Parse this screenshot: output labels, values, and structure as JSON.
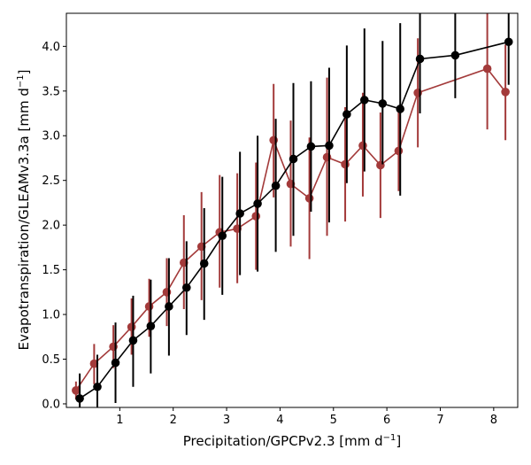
{
  "chart_data": {
    "type": "line",
    "title": "",
    "xlabel": "Precipitation/GPCPv2.3 [mm d",
    "xlabel_sup": "−1",
    "xlabel_end": "]",
    "ylabel": "Evapotranspiration/GLEAMv3.3a [mm d",
    "ylabel_sup": "−1",
    "ylabel_end": "]",
    "xlim": [
      0.0,
      8.45
    ],
    "ylim": [
      -0.04,
      4.37
    ],
    "xticks": [
      1,
      2,
      3,
      4,
      5,
      6,
      7,
      8
    ],
    "xtick_labels": [
      "1",
      "2",
      "3",
      "4",
      "5",
      "6",
      "7",
      "8"
    ],
    "yticks": [
      0.0,
      0.5,
      1.0,
      1.5,
      2.0,
      2.5,
      3.0,
      3.5,
      4.0
    ],
    "ytick_labels": [
      "0.0",
      "0.5",
      "1.0",
      "1.5",
      "2.0",
      "2.5",
      "3.0",
      "3.5",
      "4.0"
    ],
    "grid": false,
    "series": [
      {
        "color": "#a33a3a",
        "points": [
          {
            "x": 0.18,
            "y": 0.15,
            "err_low": 0.05,
            "err_high": 0.25
          },
          {
            "x": 0.52,
            "y": 0.45,
            "err_low": 0.22,
            "err_high": 0.67
          },
          {
            "x": 0.88,
            "y": 0.64,
            "err_low": 0.4,
            "err_high": 0.88
          },
          {
            "x": 1.22,
            "y": 0.86,
            "err_low": 0.55,
            "err_high": 1.18
          },
          {
            "x": 1.55,
            "y": 1.09,
            "err_low": 0.75,
            "err_high": 1.4
          },
          {
            "x": 1.88,
            "y": 1.25,
            "err_low": 0.87,
            "err_high": 1.63
          },
          {
            "x": 2.2,
            "y": 1.58,
            "err_low": 1.06,
            "err_high": 2.11
          },
          {
            "x": 2.53,
            "y": 1.76,
            "err_low": 1.16,
            "err_high": 2.37
          },
          {
            "x": 2.87,
            "y": 1.92,
            "err_low": 1.3,
            "err_high": 2.56
          },
          {
            "x": 3.2,
            "y": 1.96,
            "err_low": 1.35,
            "err_high": 2.58
          },
          {
            "x": 3.55,
            "y": 2.1,
            "err_low": 1.5,
            "err_high": 2.7
          },
          {
            "x": 3.88,
            "y": 2.95,
            "err_low": 2.31,
            "err_high": 3.58
          },
          {
            "x": 4.2,
            "y": 2.46,
            "err_low": 1.76,
            "err_high": 3.17
          },
          {
            "x": 4.55,
            "y": 2.3,
            "err_low": 1.62,
            "err_high": 2.98
          },
          {
            "x": 4.88,
            "y": 2.76,
            "err_low": 1.88,
            "err_high": 3.65
          },
          {
            "x": 5.22,
            "y": 2.68,
            "err_low": 2.04,
            "err_high": 3.32
          },
          {
            "x": 5.55,
            "y": 2.89,
            "err_low": 2.32,
            "err_high": 3.48
          },
          {
            "x": 5.88,
            "y": 2.67,
            "err_low": 2.08,
            "err_high": 3.26
          },
          {
            "x": 6.22,
            "y": 2.83,
            "err_low": 2.38,
            "err_high": 3.28
          },
          {
            "x": 6.58,
            "y": 3.48,
            "err_low": 2.87,
            "err_high": 4.09
          },
          {
            "x": 7.88,
            "y": 3.75,
            "err_low": 3.07,
            "err_high": 4.43
          },
          {
            "x": 8.22,
            "y": 3.49,
            "err_low": 2.95,
            "err_high": 4.02
          }
        ]
      },
      {
        "color": "#000000",
        "points": [
          {
            "x": 0.25,
            "y": 0.06,
            "err_low": -0.22,
            "err_high": 0.34
          },
          {
            "x": 0.58,
            "y": 0.19,
            "err_low": -0.17,
            "err_high": 0.55
          },
          {
            "x": 0.92,
            "y": 0.46,
            "err_low": 0.01,
            "err_high": 0.91
          },
          {
            "x": 1.25,
            "y": 0.71,
            "err_low": 0.19,
            "err_high": 1.21
          },
          {
            "x": 1.58,
            "y": 0.87,
            "err_low": 0.34,
            "err_high": 1.39
          },
          {
            "x": 1.92,
            "y": 1.09,
            "err_low": 0.54,
            "err_high": 1.63
          },
          {
            "x": 2.25,
            "y": 1.3,
            "err_low": 0.77,
            "err_high": 1.82
          },
          {
            "x": 2.58,
            "y": 1.57,
            "err_low": 0.94,
            "err_high": 2.19
          },
          {
            "x": 2.92,
            "y": 1.88,
            "err_low": 1.22,
            "err_high": 2.54
          },
          {
            "x": 3.25,
            "y": 2.13,
            "err_low": 1.44,
            "err_high": 2.82
          },
          {
            "x": 3.58,
            "y": 2.24,
            "err_low": 1.48,
            "err_high": 3.0
          },
          {
            "x": 3.92,
            "y": 2.44,
            "err_low": 1.7,
            "err_high": 3.19
          },
          {
            "x": 4.25,
            "y": 2.74,
            "err_low": 1.88,
            "err_high": 3.59
          },
          {
            "x": 4.58,
            "y": 2.88,
            "err_low": 2.15,
            "err_high": 3.61
          },
          {
            "x": 4.92,
            "y": 2.89,
            "err_low": 2.03,
            "err_high": 3.76
          },
          {
            "x": 5.25,
            "y": 3.24,
            "err_low": 2.47,
            "err_high": 4.01
          },
          {
            "x": 5.58,
            "y": 3.4,
            "err_low": 2.6,
            "err_high": 4.2
          },
          {
            "x": 5.92,
            "y": 3.36,
            "err_low": 2.68,
            "err_high": 4.06
          },
          {
            "x": 6.25,
            "y": 3.3,
            "err_low": 2.33,
            "err_high": 4.26
          },
          {
            "x": 6.62,
            "y": 3.86,
            "err_low": 3.25,
            "err_high": 4.43
          },
          {
            "x": 7.28,
            "y": 3.9,
            "err_low": 3.42,
            "err_high": 4.43
          },
          {
            "x": 8.28,
            "y": 4.05,
            "err_low": 3.57,
            "err_high": 4.43
          }
        ]
      }
    ]
  }
}
